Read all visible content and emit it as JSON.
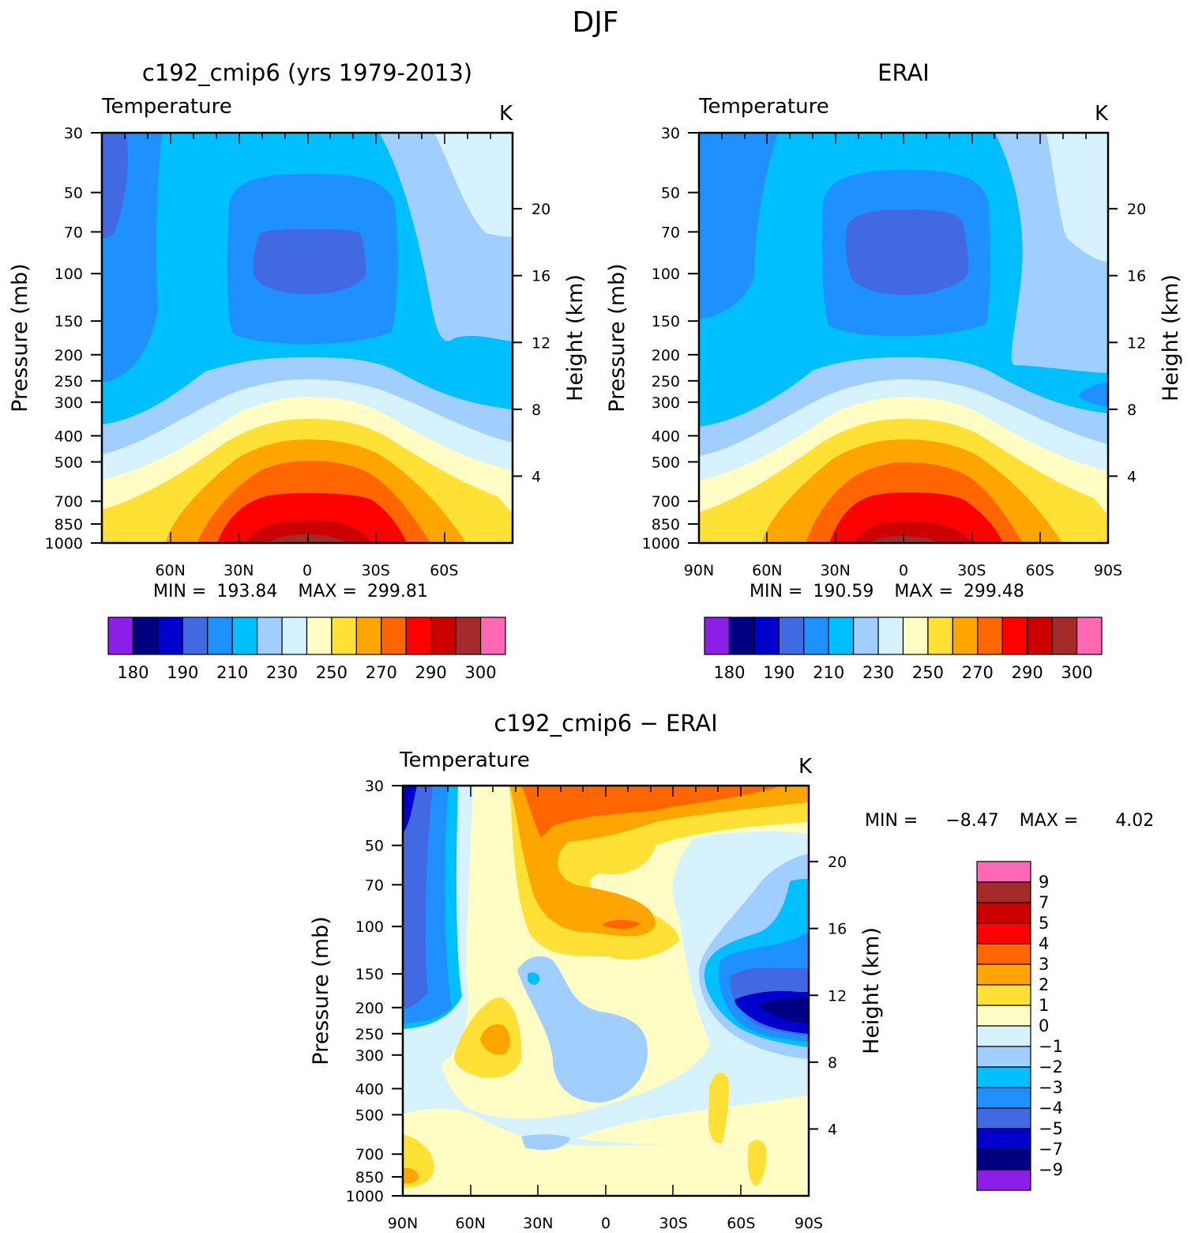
{
  "figure_title": "DJF",
  "chart_data": [
    {
      "type": "heatmap",
      "title": "c192_cmip6 (yrs 1979-2013)",
      "left_label": "Temperature",
      "unit_label": "K",
      "ylabel": "Pressure (mb)",
      "ylabel_right": "Height (km)",
      "pressure_ticks": [
        "30",
        "50",
        "70",
        "100",
        "150",
        "200",
        "250",
        "300",
        "400",
        "500",
        "700",
        "850",
        "1000"
      ],
      "height_ticks": [
        "20",
        "16",
        "12",
        "8",
        "4"
      ],
      "lat_ticks": [
        "60N",
        "30N",
        "0",
        "30S",
        "60S"
      ],
      "min_label": "MIN =",
      "min_value": "193.84",
      "max_label": "MAX =",
      "max_value": "299.81",
      "colorbar_ticks": [
        "180",
        "190",
        "210",
        "230",
        "250",
        "270",
        "290",
        "300"
      ]
    },
    {
      "type": "heatmap",
      "title": "ERAI",
      "left_label": "Temperature",
      "unit_label": "K",
      "ylabel": "Pressure (mb)",
      "ylabel_right": "Height (km)",
      "pressure_ticks": [
        "30",
        "50",
        "70",
        "100",
        "150",
        "200",
        "250",
        "300",
        "400",
        "500",
        "700",
        "850",
        "1000"
      ],
      "height_ticks": [
        "20",
        "16",
        "12",
        "8",
        "4"
      ],
      "lat_ticks": [
        "90N",
        "60N",
        "30N",
        "0",
        "30S",
        "60S",
        "90S"
      ],
      "min_label": "MIN =",
      "min_value": "190.59",
      "max_label": "MAX =",
      "max_value": "299.48",
      "colorbar_ticks": [
        "180",
        "190",
        "210",
        "230",
        "250",
        "270",
        "290",
        "300"
      ]
    },
    {
      "type": "heatmap",
      "title": "c192_cmip6 − ERAI",
      "left_label": "Temperature",
      "unit_label": "K",
      "ylabel": "Pressure (mb)",
      "ylabel_right": "Height (km)",
      "pressure_ticks": [
        "30",
        "50",
        "70",
        "100",
        "150",
        "200",
        "250",
        "300",
        "400",
        "500",
        "700",
        "850",
        "1000"
      ],
      "height_ticks": [
        "20",
        "16",
        "12",
        "8",
        "4"
      ],
      "lat_ticks": [
        "90N",
        "60N",
        "30N",
        "0",
        "30S",
        "60S",
        "90S"
      ],
      "min_label": "MIN =",
      "min_value": "−8.47",
      "max_label": "MAX =",
      "max_value": "4.02",
      "colorbar_ticks": [
        "9",
        "7",
        "5",
        "4",
        "3",
        "2",
        "1",
        "0",
        "−1",
        "−2",
        "−3",
        "−4",
        "−5",
        "−7",
        "−9"
      ]
    }
  ],
  "colors": {
    "full_field_palette": [
      "#8b1fe8",
      "#000080",
      "#0000cd",
      "#4169e1",
      "#1e90ff",
      "#00bfff",
      "#a0cfff",
      "#d6f2ff",
      "#fffdc4",
      "#ffe135",
      "#ffa500",
      "#ff6600",
      "#ff0000",
      "#cc0000",
      "#a52a2a",
      "#ff69b4"
    ],
    "diff_palette_top_to_bottom": [
      "#ff69b4",
      "#a52a2a",
      "#cc0000",
      "#ff0000",
      "#ff6600",
      "#ffa500",
      "#ffe135",
      "#fffdc4",
      "#d6f2ff",
      "#a0cfff",
      "#00bfff",
      "#1e90ff",
      "#4169e1",
      "#0000cd",
      "#000080",
      "#8b1fe8"
    ]
  }
}
